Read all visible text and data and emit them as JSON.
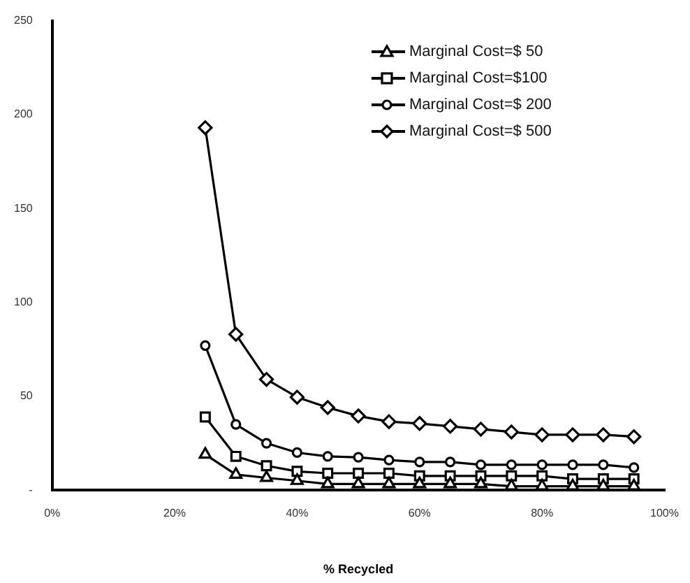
{
  "chart_data": {
    "type": "line",
    "xlabel": "% Recycled",
    "x": [
      25,
      30,
      35,
      40,
      45,
      50,
      55,
      60,
      65,
      70,
      75,
      80,
      85,
      90,
      95
    ],
    "series": [
      {
        "name": "Marginal Cost=$ 50",
        "color": "#000000",
        "marker": "triangle",
        "values": [
          19,
          8.3,
          6.6,
          5,
          3.3,
          3.3,
          3.3,
          3.3,
          3.3,
          3.3,
          2.1,
          2.1,
          2.1,
          2.1,
          2.1
        ]
      },
      {
        "name": "Marginal Cost=$100",
        "color": "#000000",
        "marker": "square",
        "values": [
          39,
          18,
          13,
          10,
          9,
          9,
          9,
          7.6,
          7.6,
          7.6,
          7.6,
          7.6,
          6,
          6,
          6
        ]
      },
      {
        "name": "Marginal Cost=$ 200",
        "color": "#000000",
        "marker": "circle",
        "values": [
          77,
          35,
          25,
          20,
          18,
          17.5,
          16,
          15,
          15,
          13.5,
          13.5,
          13.5,
          13.5,
          13.5,
          12
        ]
      },
      {
        "name": "Marginal Cost=$ 500",
        "color": "#000000",
        "marker": "diamond",
        "values": [
          193,
          83,
          59,
          49.5,
          44,
          39.5,
          36.5,
          35.5,
          34,
          32.5,
          31,
          29.5,
          29.5,
          29.5,
          28.5
        ]
      }
    ],
    "xlim": [
      0,
      100
    ],
    "xticks": [
      {
        "value": 0,
        "label": "0%"
      },
      {
        "value": 20,
        "label": "20%"
      },
      {
        "value": 40,
        "label": "40%"
      },
      {
        "value": 60,
        "label": "60%"
      },
      {
        "value": 80,
        "label": "80%"
      },
      {
        "value": 100,
        "label": "100%"
      }
    ],
    "ylim": [
      0,
      250
    ],
    "yticks": [
      {
        "value": 0,
        "label": "-"
      },
      50,
      100,
      150,
      200,
      250
    ],
    "grid": false,
    "legend": "top right"
  }
}
